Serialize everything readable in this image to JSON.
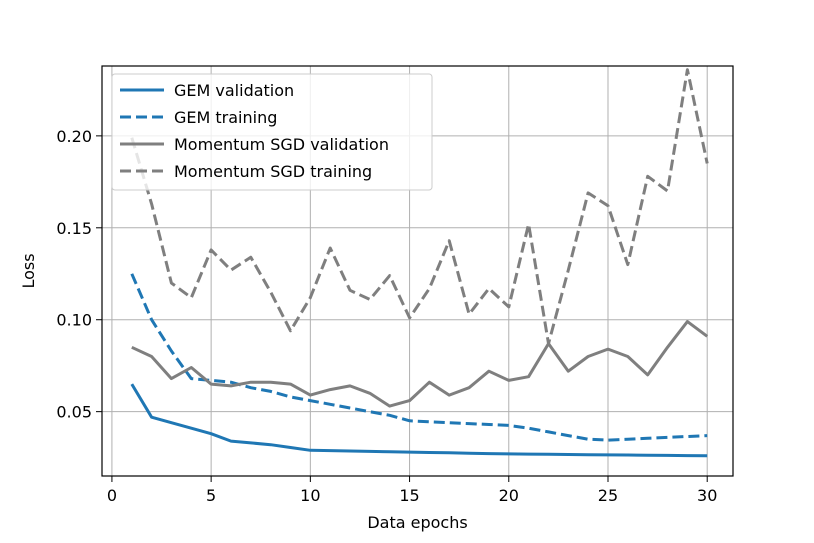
{
  "chart_data": {
    "type": "line",
    "title": "",
    "xlabel": "Data epochs",
    "ylabel": "Loss",
    "xlim": [
      -0.5,
      31.3
    ],
    "ylim": [
      0.015,
      0.238
    ],
    "x_ticks": [
      0,
      5,
      10,
      15,
      20,
      25,
      30
    ],
    "y_ticks": [
      0.05,
      0.1,
      0.15,
      0.2
    ],
    "x_tick_labels": [
      "0",
      "5",
      "10",
      "15",
      "20",
      "25",
      "30"
    ],
    "y_tick_labels": [
      "0.05",
      "0.10",
      "0.15",
      "0.20"
    ],
    "grid": true,
    "legend_position": "upper-left",
    "x": [
      1,
      2,
      3,
      4,
      5,
      6,
      7,
      8,
      9,
      10,
      11,
      12,
      13,
      14,
      15,
      16,
      17,
      18,
      19,
      20,
      21,
      22,
      23,
      24,
      25,
      26,
      27,
      28,
      29,
      30
    ],
    "series": [
      {
        "name": "GEM validation",
        "color": "#1f77b4",
        "style": "solid",
        "values": [
          0.065,
          0.047,
          0.044,
          0.041,
          0.038,
          0.034,
          0.033,
          0.032,
          0.0305,
          0.029,
          0.0288,
          0.0286,
          0.0284,
          0.0282,
          0.028,
          0.0278,
          0.0276,
          0.0274,
          0.0272,
          0.027,
          0.0269,
          0.0268,
          0.0267,
          0.0266,
          0.0265,
          0.0264,
          0.0263,
          0.0262,
          0.0261,
          0.026
        ]
      },
      {
        "name": "GEM training",
        "color": "#1f77b4",
        "style": "dashed",
        "values": [
          0.125,
          0.1,
          0.083,
          0.068,
          0.067,
          0.066,
          0.063,
          0.061,
          0.058,
          0.056,
          0.054,
          0.052,
          0.05,
          0.048,
          0.045,
          0.0445,
          0.044,
          0.0435,
          0.043,
          0.0425,
          0.041,
          0.039,
          0.037,
          0.035,
          0.0345,
          0.035,
          0.0355,
          0.036,
          0.0365,
          0.037
        ]
      },
      {
        "name": "Momentum SGD validation",
        "color": "#7f7f7f",
        "style": "solid",
        "values": [
          0.085,
          0.08,
          0.068,
          0.074,
          0.065,
          0.064,
          0.066,
          0.066,
          0.065,
          0.059,
          0.062,
          0.064,
          0.06,
          0.053,
          0.056,
          0.066,
          0.059,
          0.063,
          0.072,
          0.067,
          0.069,
          0.087,
          0.072,
          0.08,
          0.084,
          0.08,
          0.07,
          0.085,
          0.099,
          0.091
        ]
      },
      {
        "name": "Momentum SGD training",
        "color": "#7f7f7f",
        "style": "dashed",
        "values": [
          0.199,
          0.163,
          0.12,
          0.112,
          0.138,
          0.127,
          0.134,
          0.115,
          0.094,
          0.112,
          0.139,
          0.116,
          0.111,
          0.124,
          0.101,
          0.117,
          0.143,
          0.103,
          0.117,
          0.107,
          0.152,
          0.087,
          0.127,
          0.169,
          0.162,
          0.13,
          0.178,
          0.17,
          0.236,
          0.185
        ]
      }
    ]
  }
}
